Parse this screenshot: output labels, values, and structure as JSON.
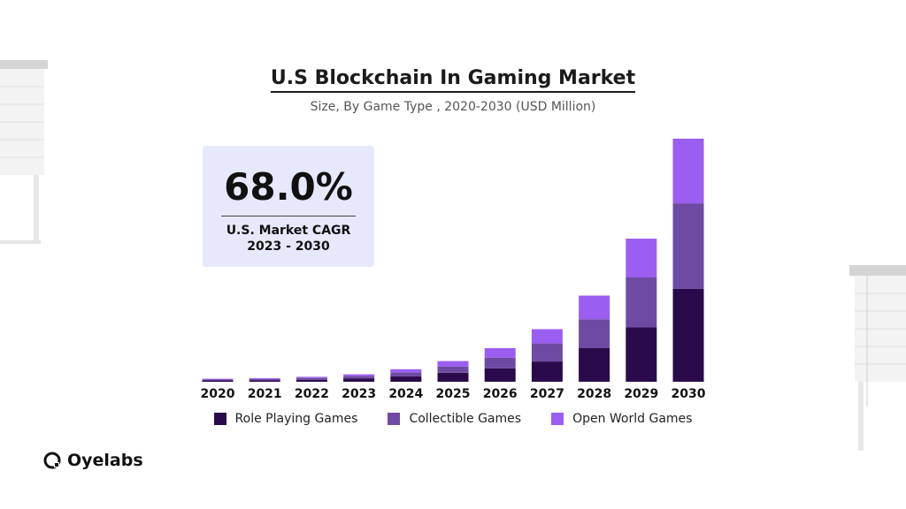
{
  "title": "U.S Blockchain In Gaming Market",
  "subtitle": "Size, By Game Type , 2020-2030 (USD Million)",
  "cagr": {
    "value": "68.0%",
    "label_line1": "U.S. Market CAGR",
    "label_line2": "2023 - 2030"
  },
  "brand": {
    "name": "Oyelabs"
  },
  "colors": {
    "role_playing": "#2a0a4a",
    "collectible": "#6e4aa2",
    "open_world": "#9a5ef0",
    "cagr_box": "#e6e8fb"
  },
  "chart_data": {
    "type": "bar",
    "stacked": true,
    "categories": [
      "2020",
      "2021",
      "2022",
      "2023",
      "2024",
      "2025",
      "2026",
      "2027",
      "2028",
      "2029",
      "2030"
    ],
    "series": [
      {
        "name": "Role Playing Games",
        "color": "#2a0a4a",
        "values": [
          1.5,
          1.8,
          2.4,
          3.6,
          6.3,
          10.5,
          15.5,
          23.5,
          39.0,
          63.0,
          108.0
        ]
      },
      {
        "name": "Collectible Games",
        "color": "#6e4aa2",
        "values": [
          1.2,
          1.4,
          2.0,
          3.0,
          4.7,
          7.0,
          12.5,
          21.0,
          33.5,
          58.0,
          99.0
        ]
      },
      {
        "name": "Open World Games",
        "color": "#9a5ef0",
        "values": [
          0.8,
          1.0,
          1.3,
          2.0,
          3.6,
          6.5,
          11.0,
          16.5,
          27.5,
          45.0,
          75.0
        ]
      }
    ],
    "ylim": [
      0,
      285
    ],
    "grid": false,
    "yaxis_visible": false,
    "legend_position": "bottom"
  }
}
